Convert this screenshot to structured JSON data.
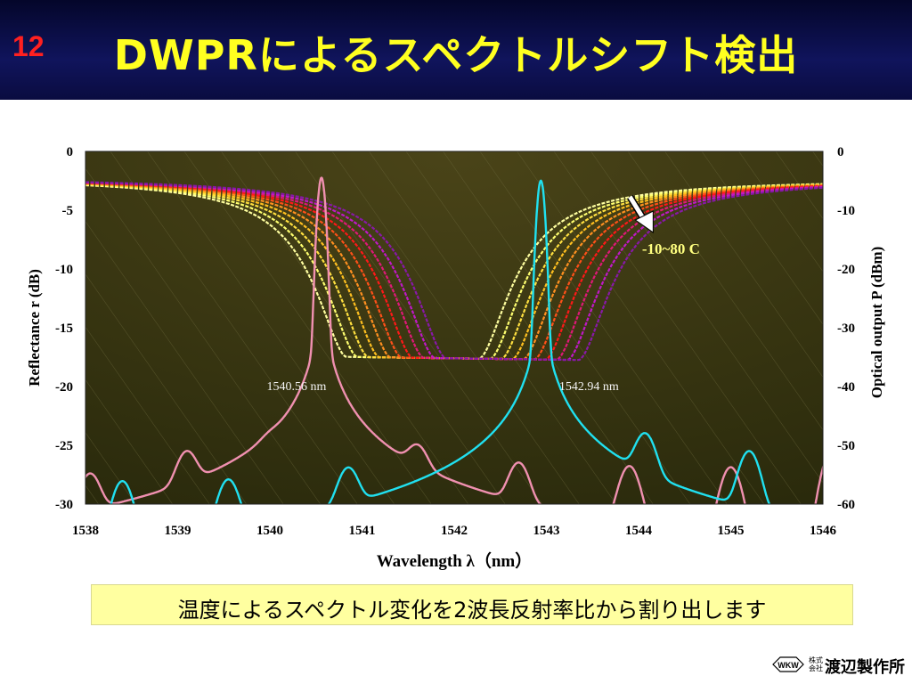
{
  "header": {
    "slide_number": "12",
    "title": "DWPRによるスペクトルシフト検出"
  },
  "chart_data": {
    "type": "line",
    "xlabel": "Wavelength  λ（nm）",
    "ylabel_left": "Reflectance  r  (dB)",
    "ylabel_right": "Optical output   P (dBm)",
    "xlim": [
      1538,
      1546
    ],
    "ylim_left": [
      -30,
      0
    ],
    "ylim_right": [
      -60,
      0
    ],
    "x_ticks": [
      "1538",
      "1539",
      "1540",
      "1541",
      "1542",
      "1543",
      "1544",
      "1545",
      "1546"
    ],
    "y_ticks_left": [
      "0",
      "-5",
      "-10",
      "-15",
      "-20",
      "-25",
      "-30"
    ],
    "y_ticks_right": [
      "0",
      "-10",
      "-20",
      "-30",
      "-40",
      "-50",
      "-60"
    ],
    "grid": false,
    "reflectance_series": {
      "count": 10,
      "dip_center_first": 1541.55,
      "dip_center_step": 0.12,
      "dip_depth_db": -17.6,
      "edge_level_db": -2.3,
      "colors": [
        "#ffffa0",
        "#ffff70",
        "#ffe040",
        "#ffc020",
        "#ff9020",
        "#ff5018",
        "#ff1818",
        "#e01878",
        "#c018c8",
        "#8818a8"
      ]
    },
    "laser_peaks": [
      {
        "label": "1540.56 nm",
        "peak_nm": 1540.56,
        "peak_dbm": -4.5,
        "color": "#f090b0",
        "side_lobes": [
          [
            1538.05,
            -56.0
          ],
          [
            1539.1,
            -52.5
          ],
          [
            1540.0,
            -57.5
          ],
          [
            1541.6,
            -52.5
          ],
          [
            1542.7,
            -54.0
          ],
          [
            1543.9,
            -54.0
          ],
          [
            1545.0,
            -54.0
          ],
          [
            1546.1,
            -51.0
          ]
        ]
      },
      {
        "label": "1542.94 nm",
        "peak_nm": 1542.94,
        "peak_dbm": -5.0,
        "color": "#20e0f0",
        "side_lobes": [
          [
            1538.4,
            -56.5
          ],
          [
            1539.55,
            -56.5
          ],
          [
            1540.85,
            -55.0
          ],
          [
            1544.07,
            -49.0
          ],
          [
            1545.2,
            -51.5
          ]
        ]
      }
    ],
    "annotation": {
      "text": "-10~80  C",
      "at_nm": 1544.1,
      "at_db": -7.5
    }
  },
  "caption": "温度によるスペクトル変化を2波長反射率比から割り出します",
  "logo": {
    "mark": "WKW",
    "small": "株式会社",
    "name": "渡辺製作所"
  }
}
